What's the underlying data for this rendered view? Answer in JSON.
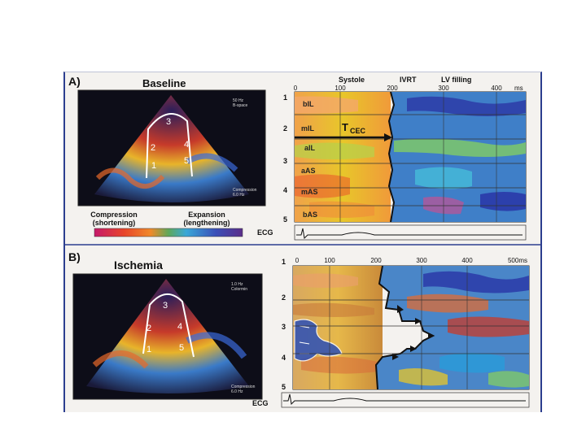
{
  "panel_a": {
    "letter": "A)",
    "title": "Baseline",
    "segments_echo": [
      "3",
      "2",
      "4",
      "1",
      "5"
    ],
    "echo_info_top": [
      "50 Hz",
      "B-space"
    ],
    "echo_info_bottom": [
      "Compression",
      "6.0 Hz"
    ],
    "legend": {
      "compression": "Compression",
      "compression_sub": "(shortening)",
      "expansion": "Expansion",
      "expansion_sub": "(lengthening)"
    },
    "phases": [
      "Systole",
      "IVRT",
      "LV filling"
    ],
    "time_ticks": [
      "0",
      "100",
      "200",
      "300",
      "400"
    ],
    "time_unit": "ms",
    "row_numbers": [
      "1",
      "2",
      "3",
      "4",
      "5"
    ],
    "segment_labels": [
      "bIL",
      "mIL",
      "aIL",
      "aAS",
      "mAS",
      "bAS"
    ],
    "tcec_main": "T",
    "tcec_sub": "CEC",
    "ecg_label": "ECG"
  },
  "panel_b": {
    "letter": "B)",
    "title": "Ischemia",
    "segments_echo": [
      "3",
      "2",
      "4",
      "1",
      "5"
    ],
    "echo_info_top": [
      "1.0 Hz",
      "Colormin"
    ],
    "echo_info_bottom": [
      "Compression",
      "6.0 Hz"
    ],
    "time_ticks": [
      "0",
      "100",
      "200",
      "300",
      "400",
      "500ms"
    ],
    "row_numbers": [
      "1",
      "2",
      "3",
      "4",
      "5"
    ],
    "ecg_label": "ECG"
  },
  "colors": {
    "compression": "#e8452a",
    "neutral": "#e8c62a",
    "expansion": "#3b4fb8",
    "frame_border": "#2c3e8f"
  }
}
